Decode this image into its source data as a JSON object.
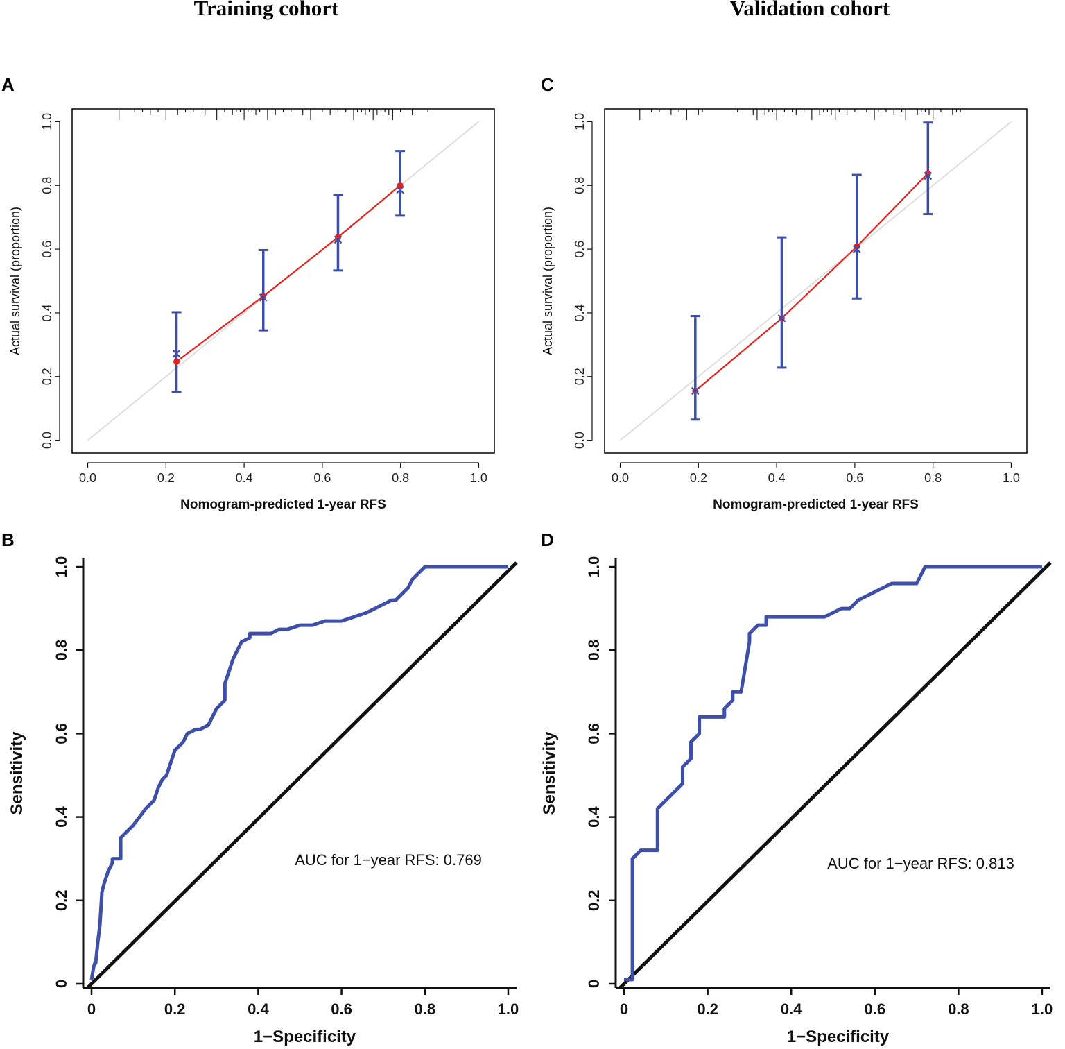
{
  "cohorts": {
    "left": "Training cohort",
    "right": "Validation cohort"
  },
  "chart_data": [
    {
      "panel": "A",
      "type": "scatter",
      "subtype": "calibration",
      "title": "Training cohort",
      "xlabel": "Nomogram-predicted 1-year RFS",
      "ylabel": "Actual survival (proportion)",
      "xlim": [
        -0.04,
        1.04
      ],
      "ylim": [
        -0.04,
        1.04
      ],
      "xticks": [
        "0.0",
        "0.2",
        "0.4",
        "0.6",
        "0.8",
        "1.0"
      ],
      "yticks": [
        "0.0",
        "0.2",
        "0.4",
        "0.6",
        "0.8",
        "1.0"
      ],
      "reference_line": [
        [
          0,
          0
        ],
        [
          1,
          1
        ]
      ],
      "points": [
        {
          "predicted": 0.227,
          "observed": 0.247,
          "corrected": 0.272,
          "ci": [
            0.152,
            0.402
          ]
        },
        {
          "predicted": 0.449,
          "observed": 0.452,
          "corrected": 0.448,
          "ci": [
            0.345,
            0.597
          ]
        },
        {
          "predicted": 0.64,
          "observed": 0.637,
          "corrected": 0.63,
          "ci": [
            0.533,
            0.77
          ]
        },
        {
          "predicted": 0.799,
          "observed": 0.8,
          "corrected": 0.786,
          "ci": [
            0.705,
            0.908
          ]
        }
      ],
      "rug": [
        0.08,
        0.12,
        0.14,
        0.16,
        0.18,
        0.2,
        0.23,
        0.25,
        0.27,
        0.3,
        0.33,
        0.35,
        0.37,
        0.38,
        0.39,
        0.4,
        0.41,
        0.42,
        0.43,
        0.44,
        0.46,
        0.48,
        0.5,
        0.52,
        0.55,
        0.57,
        0.6,
        0.62,
        0.64,
        0.66,
        0.68,
        0.69,
        0.7,
        0.71,
        0.72,
        0.73,
        0.74,
        0.75,
        0.76,
        0.77,
        0.78,
        0.8,
        0.83,
        0.87
      ]
    },
    {
      "panel": "C",
      "type": "scatter",
      "subtype": "calibration",
      "title": "Validation cohort",
      "xlabel": "Nomogram-predicted 1-year RFS",
      "ylabel": "Actual survival (proportion)",
      "xlim": [
        -0.04,
        1.04
      ],
      "ylim": [
        -0.04,
        1.04
      ],
      "xticks": [
        "0.0",
        "0.2",
        "0.4",
        "0.6",
        "0.8",
        "1.0"
      ],
      "yticks": [
        "0.0",
        "0.2",
        "0.4",
        "0.6",
        "0.8",
        "1.0"
      ],
      "reference_line": [
        [
          0,
          0
        ],
        [
          1,
          1
        ]
      ],
      "points": [
        {
          "predicted": 0.192,
          "observed": 0.155,
          "corrected": 0.155,
          "ci": [
            0.065,
            0.39
          ]
        },
        {
          "predicted": 0.413,
          "observed": 0.383,
          "corrected": 0.383,
          "ci": [
            0.228,
            0.637
          ]
        },
        {
          "predicted": 0.605,
          "observed": 0.608,
          "corrected": 0.6,
          "ci": [
            0.445,
            0.833
          ]
        },
        {
          "predicted": 0.787,
          "observed": 0.838,
          "corrected": 0.83,
          "ci": [
            0.71,
            0.997
          ]
        }
      ],
      "rug": [
        0.05,
        0.08,
        0.1,
        0.13,
        0.15,
        0.17,
        0.2,
        0.21,
        0.3,
        0.34,
        0.35,
        0.36,
        0.37,
        0.38,
        0.39,
        0.4,
        0.42,
        0.44,
        0.45,
        0.47,
        0.49,
        0.51,
        0.52,
        0.53,
        0.54,
        0.55,
        0.56,
        0.58,
        0.6,
        0.63,
        0.65,
        0.66,
        0.68,
        0.7,
        0.72,
        0.73,
        0.76,
        0.77,
        0.78,
        0.79,
        0.8,
        0.82,
        0.85,
        0.86,
        0.87
      ]
    },
    {
      "panel": "B",
      "type": "line",
      "subtype": "roc",
      "xlabel": "1−Specificity",
      "ylabel": "Sensitivity",
      "xlim": [
        -0.02,
        1.02
      ],
      "ylim": [
        -0.01,
        1.02
      ],
      "xticks": [
        "0",
        "0.2",
        "0.4",
        "0.6",
        "0.8",
        "1.0"
      ],
      "yticks": [
        "0",
        "0.2",
        "0.4",
        "0.6",
        "0.8",
        "1.0"
      ],
      "annotation": "AUC for 1−year RFS: 0.769",
      "reference_line": [
        [
          -0.01,
          -0.01
        ],
        [
          1.02,
          1.01
        ]
      ],
      "series": [
        {
          "name": "ROC",
          "x": [
            0.0,
            0.005,
            0.008,
            0.01,
            0.015,
            0.02,
            0.025,
            0.03,
            0.04,
            0.05,
            0.05,
            0.07,
            0.07,
            0.08,
            0.1,
            0.13,
            0.15,
            0.16,
            0.17,
            0.18,
            0.19,
            0.2,
            0.22,
            0.23,
            0.25,
            0.26,
            0.28,
            0.29,
            0.3,
            0.32,
            0.32,
            0.33,
            0.34,
            0.35,
            0.36,
            0.38,
            0.38,
            0.43,
            0.45,
            0.47,
            0.5,
            0.53,
            0.56,
            0.6,
            0.63,
            0.66,
            0.68,
            0.7,
            0.72,
            0.73,
            0.74,
            0.75,
            0.76,
            0.77,
            0.78,
            0.8,
            0.85,
            1.0
          ],
          "y": [
            0.01,
            0.04,
            0.05,
            0.05,
            0.1,
            0.14,
            0.22,
            0.24,
            0.27,
            0.29,
            0.3,
            0.3,
            0.35,
            0.36,
            0.38,
            0.42,
            0.44,
            0.47,
            0.49,
            0.5,
            0.53,
            0.56,
            0.58,
            0.6,
            0.61,
            0.61,
            0.62,
            0.64,
            0.66,
            0.68,
            0.72,
            0.75,
            0.78,
            0.8,
            0.82,
            0.83,
            0.84,
            0.84,
            0.85,
            0.85,
            0.86,
            0.86,
            0.87,
            0.87,
            0.88,
            0.89,
            0.9,
            0.91,
            0.92,
            0.92,
            0.93,
            0.94,
            0.95,
            0.97,
            0.98,
            1.0,
            1.0,
            1.0
          ]
        }
      ]
    },
    {
      "panel": "D",
      "type": "line",
      "subtype": "roc",
      "xlabel": "1−Specificity",
      "ylabel": "Sensitivity",
      "xlim": [
        -0.02,
        1.02
      ],
      "ylim": [
        -0.01,
        1.02
      ],
      "xticks": [
        "0",
        "0.2",
        "0.4",
        "0.6",
        "0.8",
        "1.0"
      ],
      "yticks": [
        "0",
        "0.2",
        "0.4",
        "0.6",
        "0.8",
        "1.0"
      ],
      "annotation": "AUC for 1−year RFS: 0.813",
      "reference_line": [
        [
          -0.01,
          -0.01
        ],
        [
          1.02,
          1.01
        ]
      ],
      "series": [
        {
          "name": "ROC",
          "x": [
            0.0,
            0.02,
            0.02,
            0.04,
            0.08,
            0.08,
            0.1,
            0.12,
            0.14,
            0.14,
            0.16,
            0.16,
            0.18,
            0.18,
            0.2,
            0.2,
            0.24,
            0.24,
            0.26,
            0.26,
            0.28,
            0.3,
            0.3,
            0.32,
            0.34,
            0.34,
            0.36,
            0.4,
            0.44,
            0.48,
            0.52,
            0.54,
            0.56,
            0.58,
            0.6,
            0.64,
            0.66,
            0.68,
            0.7,
            0.72,
            0.74,
            0.76,
            0.8,
            1.0
          ],
          "y": [
            0.01,
            0.01,
            0.3,
            0.32,
            0.32,
            0.42,
            0.44,
            0.46,
            0.48,
            0.52,
            0.54,
            0.58,
            0.6,
            0.64,
            0.64,
            0.64,
            0.64,
            0.66,
            0.68,
            0.7,
            0.7,
            0.82,
            0.84,
            0.86,
            0.86,
            0.88,
            0.88,
            0.88,
            0.88,
            0.88,
            0.9,
            0.9,
            0.92,
            0.93,
            0.94,
            0.96,
            0.96,
            0.96,
            0.96,
            1.0,
            1.0,
            1.0,
            1.0,
            1.0
          ]
        }
      ]
    }
  ]
}
